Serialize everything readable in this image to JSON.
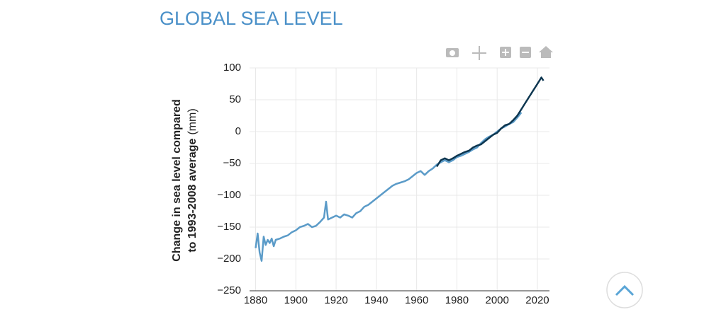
{
  "chart_data": {
    "type": "line",
    "title": "GLOBAL SEA LEVEL",
    "ylabel_lines": [
      "Change in sea level compared",
      "to 1993-2008 average"
    ],
    "ylabel_unit": "(mm)",
    "xlim": [
      1877,
      2026
    ],
    "ylim": [
      -250,
      100
    ],
    "xticks": [
      1880,
      1900,
      1920,
      1940,
      1960,
      1980,
      2000,
      2020
    ],
    "yticks": [
      {
        "value": -250,
        "label": "−250"
      },
      {
        "value": -200,
        "label": "−200"
      },
      {
        "value": -150,
        "label": "−150"
      },
      {
        "value": -100,
        "label": "−100"
      },
      {
        "value": -50,
        "label": "−50"
      },
      0,
      50,
      100
    ],
    "grid": true,
    "series": [
      {
        "color": "#5b9bc8",
        "x": [
          1880,
          1881,
          1882,
          1883,
          1884,
          1885,
          1886,
          1887,
          1888,
          1889,
          1890,
          1892,
          1894,
          1896,
          1898,
          1900,
          1902,
          1904,
          1906,
          1908,
          1910,
          1912,
          1914,
          1915,
          1916,
          1918,
          1920,
          1922,
          1924,
          1926,
          1928,
          1930,
          1932,
          1934,
          1936,
          1938,
          1940,
          1942,
          1944,
          1946,
          1948,
          1950,
          1952,
          1954,
          1956,
          1958,
          1960,
          1962,
          1964,
          1966,
          1968,
          1970,
          1972,
          1974,
          1976,
          1978,
          1980,
          1982,
          1984,
          1986,
          1988,
          1990,
          1992,
          1994,
          1996,
          1998,
          2000,
          2002,
          2004,
          2006,
          2008,
          2010,
          2012
        ],
        "values": [
          -183,
          -160,
          -190,
          -203,
          -165,
          -178,
          -170,
          -175,
          -168,
          -180,
          -170,
          -168,
          -165,
          -163,
          -158,
          -155,
          -150,
          -148,
          -145,
          -150,
          -148,
          -142,
          -135,
          -110,
          -138,
          -135,
          -132,
          -135,
          -130,
          -132,
          -135,
          -128,
          -125,
          -118,
          -115,
          -110,
          -105,
          -100,
          -95,
          -90,
          -85,
          -82,
          -80,
          -78,
          -75,
          -70,
          -65,
          -62,
          -68,
          -62,
          -58,
          -52,
          -48,
          -45,
          -48,
          -45,
          -40,
          -38,
          -35,
          -32,
          -28,
          -25,
          -18,
          -12,
          -8,
          -5,
          0,
          5,
          8,
          12,
          15,
          22,
          30
        ]
      },
      {
        "color": "#0d3650",
        "x": [
          1970,
          1972,
          1974,
          1976,
          1978,
          1980,
          1982,
          1984,
          1986,
          1988,
          1990,
          1992,
          1994,
          1996,
          1998,
          2000,
          2002,
          2004,
          2006,
          2008,
          2010,
          2012,
          2014,
          2016,
          2018,
          2020,
          2022,
          2023
        ],
        "values": [
          -55,
          -45,
          -42,
          -45,
          -42,
          -38,
          -35,
          -32,
          -30,
          -25,
          -22,
          -20,
          -15,
          -10,
          -5,
          -2,
          5,
          10,
          12,
          18,
          25,
          35,
          45,
          55,
          65,
          75,
          85,
          80
        ]
      }
    ]
  }
}
